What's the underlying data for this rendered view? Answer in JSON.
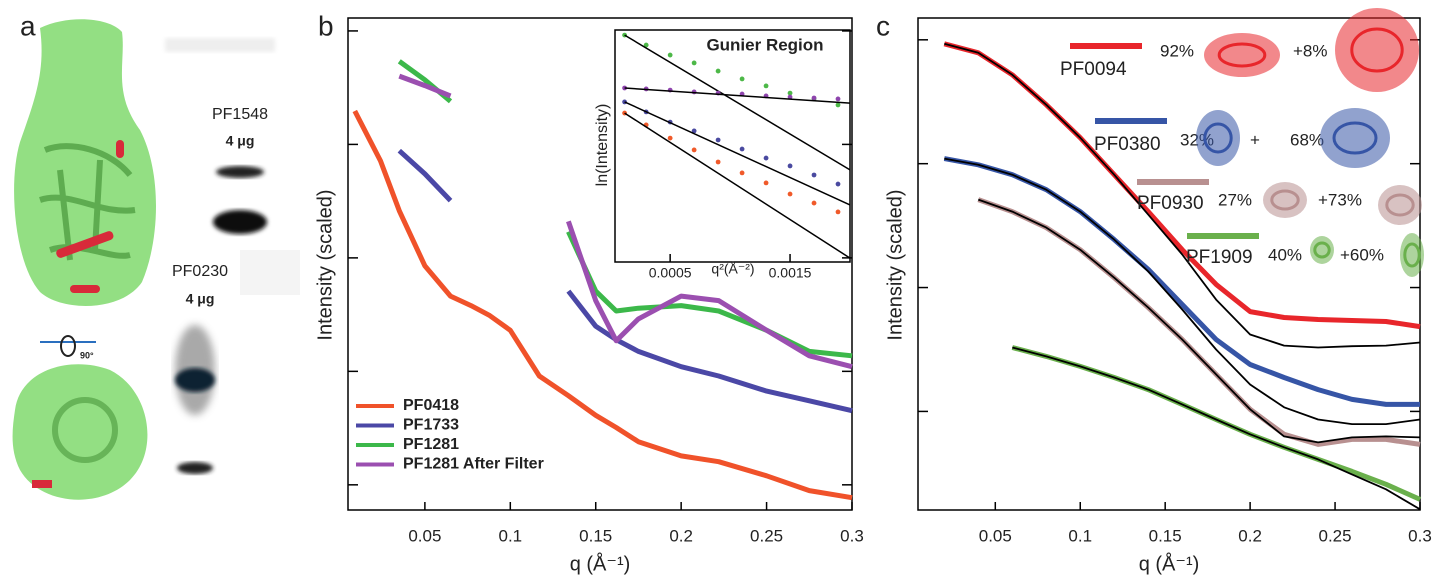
{
  "panel_a": {
    "label": "a",
    "gels": [
      {
        "name": "PF1548",
        "amount": "4 μg"
      },
      {
        "name": "PF0230",
        "amount": "4 μg"
      }
    ],
    "rotation": "90°"
  },
  "chart_data": [
    {
      "type": "line",
      "panel": "b",
      "x_label": "q (Å⁻¹)",
      "y_label": "Intensity (scaled)",
      "log_y": true,
      "xlim": [
        0.005,
        0.3
      ],
      "ylim": [
        0.0006,
        13
      ],
      "xticks": [
        0.05,
        0.1,
        0.15,
        0.2,
        0.25,
        0.3
      ],
      "yticks": [
        0.001,
        0.01,
        0.1,
        1,
        10
      ],
      "legend": "lower left",
      "x": [
        0.009,
        0.024,
        0.035,
        0.05,
        0.065,
        0.077,
        0.088,
        0.1,
        0.117,
        0.134,
        0.15,
        0.162,
        0.175,
        0.2,
        0.222,
        0.25,
        0.275,
        0.3
      ],
      "series": [
        {
          "name": "PF0418",
          "color": "#f0522a",
          "values": [
            1.97,
            0.716,
            0.26,
            0.085,
            0.046,
            0.038,
            0.031,
            0.023,
            0.0091,
            0.0061,
            0.0041,
            0.0032,
            0.0024,
            0.0018,
            0.0016,
            0.0012,
            0.00089,
            0.00077
          ]
        },
        {
          "name": "PF1733",
          "color": "#4b48a6",
          "values": [
            2.67,
            null,
            0.88,
            0.55,
            0.32,
            null,
            null,
            0.115,
            null,
            0.051,
            0.025,
            0.019,
            0.015,
            0.011,
            0.0091,
            0.0067,
            0.0055,
            0.0045
          ]
        },
        {
          "name": "PF1281",
          "color": "#3cb84a",
          "values": [
            11.7,
            null,
            5.4,
            3.7,
            2.4,
            null,
            null,
            0.72,
            null,
            0.17,
            0.051,
            0.034,
            0.036,
            0.038,
            0.034,
            0.023,
            0.015,
            0.0137
          ]
        },
        {
          "name": "PF1281 After Filter",
          "color": "#9b4fb0",
          "values": [
            4.6,
            null,
            4.0,
            3.3,
            2.67,
            null,
            null,
            0.88,
            null,
            0.21,
            0.042,
            0.0186,
            0.029,
            0.046,
            0.042,
            0.023,
            0.0137,
            0.011
          ]
        }
      ]
    },
    {
      "type": "scatter",
      "title": "Gunier Region",
      "x_label": "q²(Å⁻²)",
      "y_label": "ln(Intensity)",
      "xlim": [
        4e-05,
        0.002
      ],
      "ylim": [
        0,
        10
      ],
      "xticks": [
        0.0005,
        0.0015
      ],
      "x": [
        0.00012,
        0.0003,
        0.0005,
        0.0007,
        0.0009,
        0.0011,
        0.0013,
        0.0015,
        0.0017,
        0.0019
      ],
      "fit_x": [
        0.00012,
        0.002
      ],
      "fit_color": "#000000",
      "series": [
        {
          "color": "#4db848",
          "values": [
            9.78,
            9.35,
            8.92,
            8.58,
            8.23,
            7.89,
            7.59,
            7.28,
            7.03,
            6.77
          ],
          "fit": [
            9.78,
            3.97
          ]
        },
        {
          "color": "#8e44ad",
          "values": [
            7.5,
            7.46,
            7.41,
            7.33,
            7.28,
            7.24,
            7.16,
            7.11,
            7.07,
            7.03
          ],
          "fit": [
            7.5,
            6.85
          ]
        },
        {
          "color": "#4a4aa0",
          "values": [
            6.9,
            6.47,
            6.03,
            5.65,
            5.26,
            4.87,
            4.48,
            4.14,
            3.75,
            3.36
          ],
          "fit": [
            6.9,
            2.46
          ]
        },
        {
          "color": "#f05a2a",
          "values": [
            6.42,
            5.91,
            5.34,
            4.83,
            4.31,
            3.84,
            3.41,
            2.93,
            2.54,
            2.16
          ],
          "fit": [
            6.42,
            0.17
          ]
        }
      ]
    },
    {
      "type": "line",
      "panel": "c",
      "x_label": "q (Å⁻¹)",
      "y_label": "Intensity (scaled)",
      "log_y": true,
      "xlim": [
        0.0045,
        0.3
      ],
      "ylim": [
        0.0016,
        15
      ],
      "xticks": [
        0.05,
        0.1,
        0.15,
        0.2,
        0.25,
        0.3
      ],
      "yticks": [
        0.01,
        0.1,
        1,
        10
      ],
      "legend": "upper right",
      "fit_color": "#000000",
      "x": [
        0.02,
        0.04,
        0.06,
        0.08,
        0.1,
        0.12,
        0.14,
        0.16,
        0.18,
        0.2,
        0.22,
        0.24,
        0.26,
        0.28,
        0.3
      ],
      "series": [
        {
          "name": "PF0094",
          "color": "#e8262b",
          "composition": [
            "92%",
            "+8%"
          ],
          "values": [
            9.29,
            7.85,
            5.22,
            2.99,
            1.62,
            0.815,
            0.41,
            0.202,
            0.106,
            0.064,
            0.0573,
            0.0552,
            0.0542,
            0.0532,
            0.0484
          ],
          "fit": [
            9.29,
            7.85,
            5.22,
            2.99,
            1.62,
            0.815,
            0.388,
            0.185,
            0.08,
            0.0418,
            0.034,
            0.0328,
            0.0336,
            0.034,
            0.036
          ]
        },
        {
          "name": "PF0380",
          "color": "#3655a6",
          "composition": [
            "32%",
            "+",
            "68%"
          ],
          "values": [
            1.1,
            0.98,
            0.815,
            0.617,
            0.41,
            0.244,
            0.14,
            0.073,
            0.0381,
            0.0239,
            0.0188,
            0.015,
            0.0125,
            0.0114,
            0.0114
          ],
          "fit": [
            1.1,
            0.98,
            0.815,
            0.617,
            0.41,
            0.244,
            0.135,
            0.0665,
            0.0316,
            0.0165,
            0.0108,
            0.0086,
            0.0079,
            0.0079,
            0.0086
          ]
        },
        {
          "name": "PF0930",
          "color": "#b89090",
          "composition": [
            "27%",
            "+73%"
          ],
          "values": [
            null,
            0.513,
            0.41,
            0.305,
            0.202,
            0.12,
            0.069,
            0.0381,
            0.0199,
            0.0104,
            0.00653,
            0.00542,
            0.00594,
            0.00594,
            0.00542
          ],
          "fit": [
            null,
            0.513,
            0.41,
            0.305,
            0.202,
            0.12,
            0.069,
            0.0381,
            0.0199,
            0.0104,
            0.00628,
            0.00562,
            0.00617,
            0.00628,
            0.00617
          ]
        },
        {
          "name": "PF1909",
          "color": "#6ab04c",
          "composition": [
            "40%",
            "+60%"
          ],
          "values": [
            null,
            null,
            0.0328,
            0.0278,
            0.0231,
            0.0188,
            0.015,
            0.0114,
            0.0086,
            0.00653,
            0.00513,
            0.0041,
            0.00328,
            0.00258,
            0.00195
          ],
          "fit": [
            null,
            null,
            0.0328,
            0.0278,
            0.0231,
            0.0188,
            0.015,
            0.0114,
            0.0086,
            0.00653,
            0.00513,
            0.0041,
            0.0031,
            0.00235,
            0.00162
          ]
        }
      ]
    }
  ]
}
